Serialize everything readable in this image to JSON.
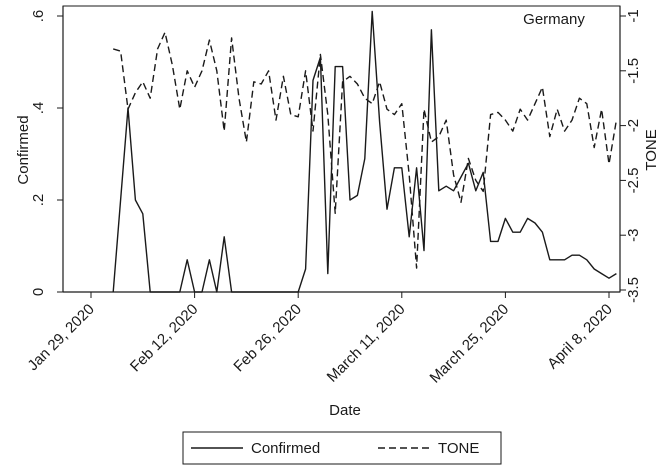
{
  "chart_data": {
    "type": "line",
    "title": "Germany",
    "xlabel": "Date",
    "ylabel_left": "Confirmed",
    "ylabel_right": "TONE",
    "x_tick_labels": [
      "Jan 29, 2020",
      "Feb 12, 2020",
      "Feb 26, 2020",
      "March 11, 2020",
      "March 25, 2020",
      "April 8, 2020"
    ],
    "x_tick_dates": [
      "2020-01-29",
      "2020-02-12",
      "2020-02-26",
      "2020-03-11",
      "2020-03-25",
      "2020-04-08"
    ],
    "x_range": [
      "2020-01-29",
      "2020-04-10"
    ],
    "y_left_ticks": [
      0,
      0.2,
      0.4,
      0.6
    ],
    "y_left_tick_labels": [
      "0",
      ".2",
      ".4",
      ".6"
    ],
    "y_left_range": [
      0,
      0.6
    ],
    "y_right_ticks": [
      -1,
      -1.5,
      -2,
      -2.5,
      -3,
      -3.5
    ],
    "y_right_tick_labels": [
      "-1",
      "-1.5",
      "-2",
      "-2.5",
      "-3",
      "-3.5"
    ],
    "y_right_range": [
      -3.5,
      -1
    ],
    "grid": false,
    "legend_position": "bottom",
    "series": [
      {
        "name": "Confirmed",
        "axis": "left",
        "style": "solid",
        "color": "#1a1a1a",
        "points": [
          [
            "2020-02-01",
            0
          ],
          [
            "2020-02-03",
            0.4
          ],
          [
            "2020-02-04",
            0.2
          ],
          [
            "2020-02-05",
            0.17
          ],
          [
            "2020-02-06",
            0
          ],
          [
            "2020-02-07",
            0
          ],
          [
            "2020-02-08",
            0
          ],
          [
            "2020-02-09",
            0
          ],
          [
            "2020-02-10",
            0
          ],
          [
            "2020-02-11",
            0.07
          ],
          [
            "2020-02-12",
            0
          ],
          [
            "2020-02-13",
            0
          ],
          [
            "2020-02-14",
            0.07
          ],
          [
            "2020-02-15",
            0
          ],
          [
            "2020-02-16",
            0.12
          ],
          [
            "2020-02-17",
            0
          ],
          [
            "2020-02-18",
            0
          ],
          [
            "2020-02-19",
            0
          ],
          [
            "2020-02-20",
            0
          ],
          [
            "2020-02-21",
            0
          ],
          [
            "2020-02-22",
            0
          ],
          [
            "2020-02-23",
            0
          ],
          [
            "2020-02-24",
            0
          ],
          [
            "2020-02-25",
            0
          ],
          [
            "2020-02-26",
            0
          ],
          [
            "2020-02-27",
            0.05
          ],
          [
            "2020-02-28",
            0.46
          ],
          [
            "2020-02-29",
            0.51
          ],
          [
            "2020-03-01",
            0.04
          ],
          [
            "2020-03-02",
            0.49
          ],
          [
            "2020-03-03",
            0.49
          ],
          [
            "2020-03-04",
            0.2
          ],
          [
            "2020-03-05",
            0.21
          ],
          [
            "2020-03-06",
            0.29
          ],
          [
            "2020-03-07",
            0.61
          ],
          [
            "2020-03-08",
            0.37
          ],
          [
            "2020-03-09",
            0.18
          ],
          [
            "2020-03-10",
            0.27
          ],
          [
            "2020-03-11",
            0.27
          ],
          [
            "2020-03-12",
            0.12
          ],
          [
            "2020-03-13",
            0.27
          ],
          [
            "2020-03-14",
            0.09
          ],
          [
            "2020-03-15",
            0.57
          ],
          [
            "2020-03-16",
            0.22
          ],
          [
            "2020-03-17",
            0.23
          ],
          [
            "2020-03-18",
            0.22
          ],
          [
            "2020-03-19",
            0.25
          ],
          [
            "2020-03-20",
            0.28
          ],
          [
            "2020-03-21",
            0.22
          ],
          [
            "2020-03-22",
            0.26
          ],
          [
            "2020-03-23",
            0.11
          ],
          [
            "2020-03-24",
            0.11
          ],
          [
            "2020-03-25",
            0.16
          ],
          [
            "2020-03-26",
            0.13
          ],
          [
            "2020-03-27",
            0.13
          ],
          [
            "2020-03-28",
            0.16
          ],
          [
            "2020-03-29",
            0.15
          ],
          [
            "2020-03-30",
            0.13
          ],
          [
            "2020-03-31",
            0.07
          ],
          [
            "2020-04-01",
            0.07
          ],
          [
            "2020-04-02",
            0.07
          ],
          [
            "2020-04-03",
            0.08
          ],
          [
            "2020-04-04",
            0.08
          ],
          [
            "2020-04-05",
            0.07
          ],
          [
            "2020-04-06",
            0.05
          ],
          [
            "2020-04-07",
            0.04
          ],
          [
            "2020-04-08",
            0.03
          ],
          [
            "2020-04-09",
            0.04
          ]
        ]
      },
      {
        "name": "TONE",
        "axis": "right",
        "style": "dashed",
        "color": "#1a1a1a",
        "points": [
          [
            "2020-02-01",
            -1.3
          ],
          [
            "2020-02-02",
            -1.32
          ],
          [
            "2020-02-03",
            -1.85
          ],
          [
            "2020-02-04",
            -1.7
          ],
          [
            "2020-02-05",
            -1.6
          ],
          [
            "2020-02-06",
            -1.75
          ],
          [
            "2020-02-07",
            -1.3
          ],
          [
            "2020-02-08",
            -1.15
          ],
          [
            "2020-02-09",
            -1.45
          ],
          [
            "2020-02-10",
            -1.85
          ],
          [
            "2020-02-11",
            -1.5
          ],
          [
            "2020-02-12",
            -1.65
          ],
          [
            "2020-02-13",
            -1.5
          ],
          [
            "2020-02-14",
            -1.22
          ],
          [
            "2020-02-15",
            -1.5
          ],
          [
            "2020-02-16",
            -2.05
          ],
          [
            "2020-02-17",
            -1.2
          ],
          [
            "2020-02-18",
            -1.75
          ],
          [
            "2020-02-19",
            -2.15
          ],
          [
            "2020-02-20",
            -1.6
          ],
          [
            "2020-02-21",
            -1.62
          ],
          [
            "2020-02-22",
            -1.5
          ],
          [
            "2020-02-23",
            -1.95
          ],
          [
            "2020-02-24",
            -1.55
          ],
          [
            "2020-02-25",
            -1.9
          ],
          [
            "2020-02-26",
            -1.92
          ],
          [
            "2020-02-27",
            -1.5
          ],
          [
            "2020-02-28",
            -2.05
          ],
          [
            "2020-02-29",
            -1.35
          ],
          [
            "2020-03-01",
            -1.9
          ],
          [
            "2020-03-02",
            -2.8
          ],
          [
            "2020-03-03",
            -1.6
          ],
          [
            "2020-03-04",
            -1.55
          ],
          [
            "2020-03-05",
            -1.62
          ],
          [
            "2020-03-06",
            -1.75
          ],
          [
            "2020-03-07",
            -1.8
          ],
          [
            "2020-03-08",
            -1.6
          ],
          [
            "2020-03-09",
            -1.85
          ],
          [
            "2020-03-10",
            -1.9
          ],
          [
            "2020-03-11",
            -1.8
          ],
          [
            "2020-03-12",
            -2.45
          ],
          [
            "2020-03-13",
            -3.3
          ],
          [
            "2020-03-14",
            -1.85
          ],
          [
            "2020-03-15",
            -2.15
          ],
          [
            "2020-03-16",
            -2.1
          ],
          [
            "2020-03-17",
            -1.95
          ],
          [
            "2020-03-18",
            -2.45
          ],
          [
            "2020-03-19",
            -2.7
          ],
          [
            "2020-03-20",
            -2.3
          ],
          [
            "2020-03-21",
            -2.5
          ],
          [
            "2020-03-22",
            -2.6
          ],
          [
            "2020-03-23",
            -1.9
          ],
          [
            "2020-03-24",
            -1.88
          ],
          [
            "2020-03-25",
            -1.95
          ],
          [
            "2020-03-26",
            -2.05
          ],
          [
            "2020-03-27",
            -1.85
          ],
          [
            "2020-03-28",
            -1.95
          ],
          [
            "2020-03-29",
            -1.8
          ],
          [
            "2020-03-30",
            -1.65
          ],
          [
            "2020-03-31",
            -2.1
          ],
          [
            "2020-04-01",
            -1.85
          ],
          [
            "2020-04-02",
            -2.05
          ],
          [
            "2020-04-03",
            -1.95
          ],
          [
            "2020-04-04",
            -1.75
          ],
          [
            "2020-04-05",
            -1.8
          ],
          [
            "2020-04-06",
            -2.2
          ],
          [
            "2020-04-07",
            -1.85
          ],
          [
            "2020-04-08",
            -2.35
          ],
          [
            "2020-04-09",
            -1.95
          ]
        ]
      }
    ]
  }
}
